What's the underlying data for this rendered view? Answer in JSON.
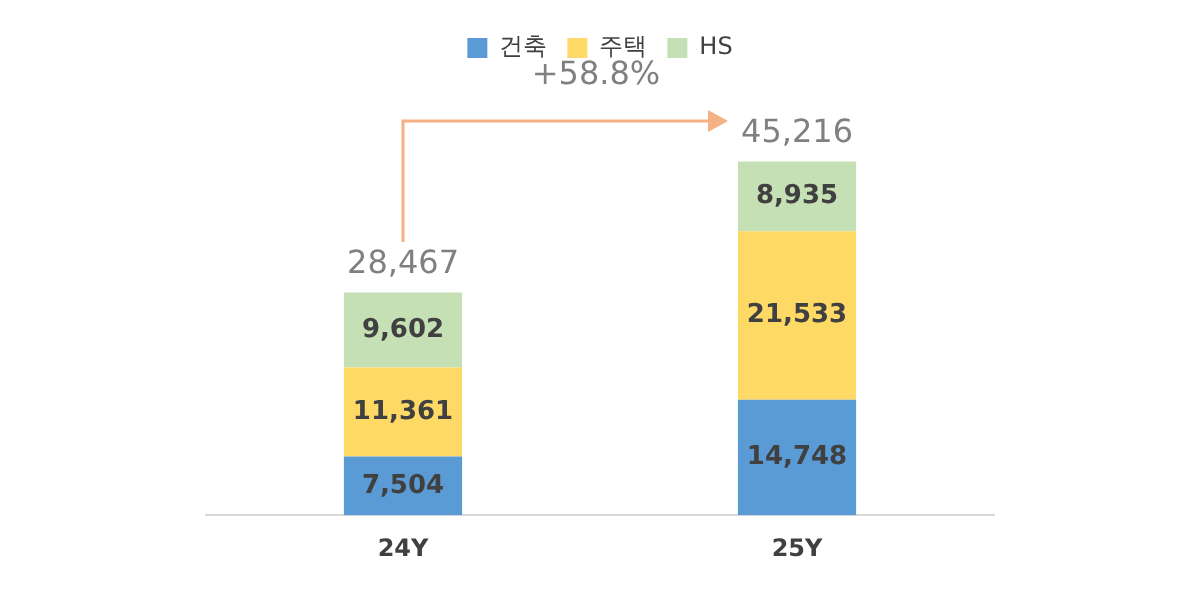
{
  "chart_data": {
    "type": "bar",
    "stacked": true,
    "categories": [
      "24Y",
      "25Y"
    ],
    "series": [
      {
        "name": "건축",
        "color": "#5b9bd5",
        "values": [
          7504,
          14748
        ],
        "value_labels": [
          "7,504",
          "14,748"
        ]
      },
      {
        "name": "주택",
        "color": "#ffd966",
        "values": [
          11361,
          21533
        ],
        "value_labels": [
          "11,361",
          "21,533"
        ]
      },
      {
        "name": "HS",
        "color": "#c5e0b4",
        "values": [
          9602,
          8935
        ],
        "value_labels": [
          "9,602",
          "8,935"
        ]
      }
    ],
    "totals": [
      "28,467",
      "45,216"
    ],
    "annotations": [
      "+58.8%"
    ],
    "legend": "top",
    "grid": false
  }
}
